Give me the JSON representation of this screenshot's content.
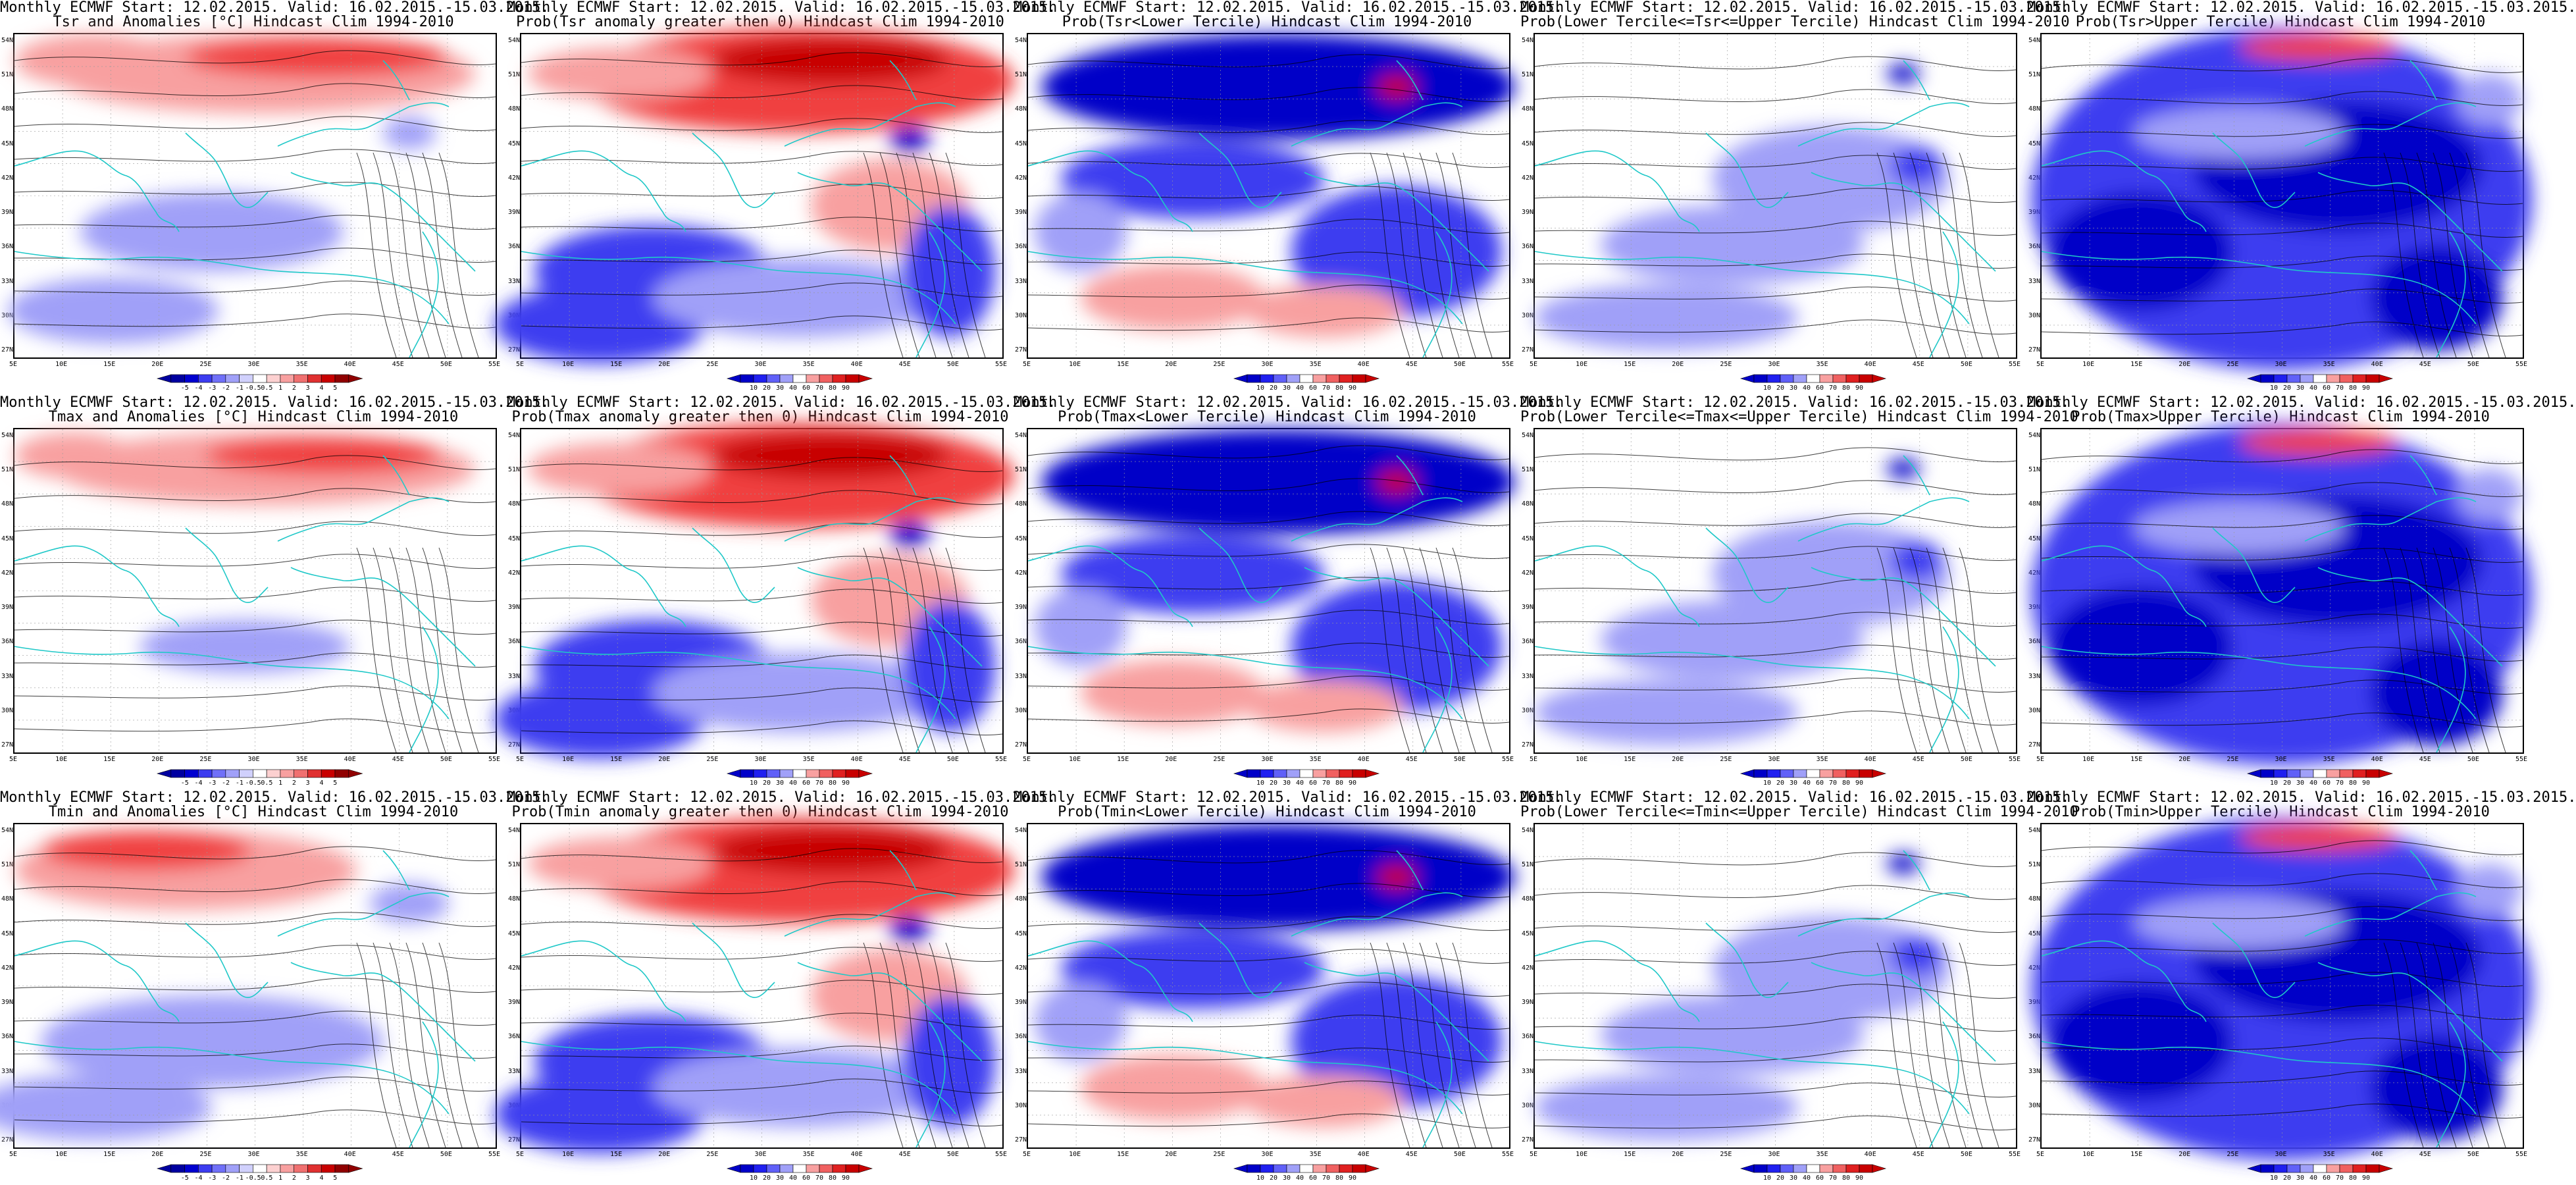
{
  "lat_labels": [
    "54N",
    "51N",
    "48N",
    "45N",
    "42N",
    "39N",
    "36N",
    "33N",
    "30N",
    "27N"
  ],
  "lon_labels": [
    "5E",
    "10E",
    "15E",
    "20E",
    "25E",
    "30E",
    "35E",
    "40E",
    "45E",
    "50E",
    "55E"
  ],
  "anom_scale": {
    "labels": [
      "-5",
      "-4",
      "-3",
      "-2",
      "-1",
      "-0.5",
      "0.5",
      "1",
      "2",
      "3",
      "4",
      "5"
    ]
  },
  "prob_scale": {
    "labels": [
      "10",
      "20",
      "30",
      "40",
      "60",
      "70",
      "80",
      "90"
    ]
  },
  "panels": [
    {
      "title1": "Monthly ECMWF Start: 12.02.2015. Valid: 16.02.2015.-15.03.2015.",
      "title2": "Tsr and Anomalies [°C] Hindcast Clim 1994-2010",
      "kind": "anom",
      "scheme": "anom_tsr"
    },
    {
      "title1": "Monthly ECMWF Start: 12.02.2015. Valid: 16.02.2015.-15.03.2015.",
      "title2": "Prob(Tsr anomaly greater then 0) Hindcast Clim 1994-2010",
      "kind": "prob",
      "scheme": "gt0"
    },
    {
      "title1": "Monthly ECMWF Start: 12.02.2015. Valid: 16.02.2015.-15.03.2015.",
      "title2": "Prob(Tsr<Lower Tercile) Hindcast Clim 1994-2010",
      "kind": "prob",
      "scheme": "lower"
    },
    {
      "title1": "Monthly ECMWF Start: 12.02.2015. Valid: 16.02.2015.-15.03.2015.",
      "title2": "Prob(Lower Tercile<=Tsr<=Upper Tercile) Hindcast Clim 1994-2010",
      "kind": "prob",
      "scheme": "middle"
    },
    {
      "title1": "Monthly ECMWF Start: 12.02.2015. Valid: 16.02.2015.-15.03.2015.",
      "title2": "Prob(Tsr>Upper Tercile) Hindcast Clim 1994-2010",
      "kind": "prob",
      "scheme": "upper"
    },
    {
      "title1": "Monthly ECMWF Start: 12.02.2015. Valid: 16.02.2015.-15.03.2015.",
      "title2": "Tmax and Anomalies [°C] Hindcast Clim 1994-2010",
      "kind": "anom",
      "scheme": "anom_tmax"
    },
    {
      "title1": "Monthly ECMWF Start: 12.02.2015. Valid: 16.02.2015.-15.03.2015.",
      "title2": "Prob(Tmax anomaly greater then 0) Hindcast Clim 1994-2010",
      "kind": "prob",
      "scheme": "gt0"
    },
    {
      "title1": "Monthly ECMWF Start: 12.02.2015. Valid: 16.02.2015.-15.03.2015.",
      "title2": "Prob(Tmax<Lower Tercile) Hindcast Clim 1994-2010",
      "kind": "prob",
      "scheme": "lower"
    },
    {
      "title1": "Monthly ECMWF Start: 12.02.2015. Valid: 16.02.2015.-15.03.2015.",
      "title2": "Prob(Lower Tercile<=Tmax<=Upper Tercile) Hindcast Clim 1994-2010",
      "kind": "prob",
      "scheme": "middle"
    },
    {
      "title1": "Monthly ECMWF Start: 12.02.2015. Valid: 16.02.2015.-15.03.2015.",
      "title2": "Prob(Tmax>Upper Tercile) Hindcast Clim 1994-2010",
      "kind": "prob",
      "scheme": "upper"
    },
    {
      "title1": "Monthly ECMWF Start: 12.02.2015. Valid: 16.02.2015.-15.03.2015.",
      "title2": "Tmin and Anomalies [°C] Hindcast Clim 1994-2010",
      "kind": "anom",
      "scheme": "anom_tmin"
    },
    {
      "title1": "Monthly ECMWF Start: 12.02.2015. Valid: 16.02.2015.-15.03.2015.",
      "title2": "Prob(Tmin anomaly greater then 0) Hindcast Clim 1994-2010",
      "kind": "prob",
      "scheme": "gt0"
    },
    {
      "title1": "Monthly ECMWF Start: 12.02.2015. Valid: 16.02.2015.-15.03.2015.",
      "title2": "Prob(Tmin<Lower Tercile) Hindcast Clim 1994-2010",
      "kind": "prob",
      "scheme": "lower"
    },
    {
      "title1": "Monthly ECMWF Start: 12.02.2015. Valid: 16.02.2015.-15.03.2015.",
      "title2": "Prob(Lower Tercile<=Tmin<=Upper Tercile) Hindcast Clim 1994-2010",
      "kind": "prob",
      "scheme": "middle"
    },
    {
      "title1": "Monthly ECMWF Start: 12.02.2015. Valid: 16.02.2015.-15.03.2015.",
      "title2": "Prob(Tmin>Upper Tercile) Hindcast Clim 1994-2010",
      "kind": "prob",
      "scheme": "upper"
    }
  ],
  "colors": {
    "coast": "#1fc8c8",
    "contour": "#000000",
    "red_dark": "#c80000",
    "red_mid": "#f04040",
    "red_light": "#f8a0a0",
    "blue_dark": "#0000c8",
    "blue_mid": "#3c3cf0",
    "blue_light": "#a0a0f8"
  }
}
